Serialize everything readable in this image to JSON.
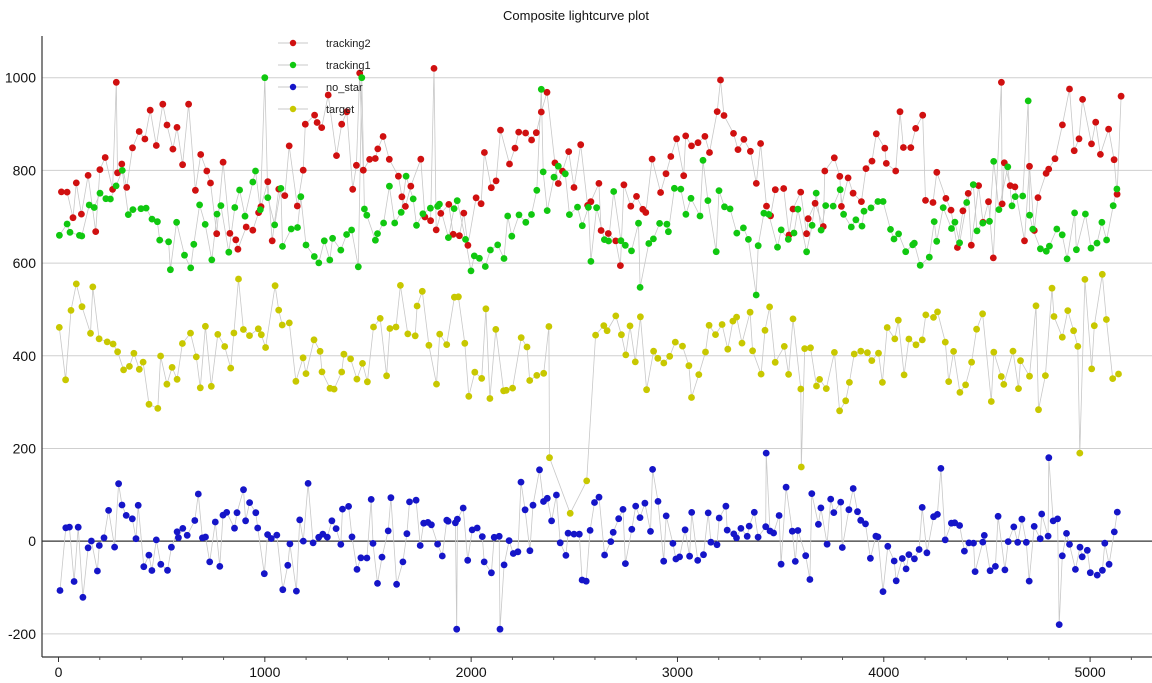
{
  "chart_data": {
    "type": "scatter",
    "title": "Composite lightcurve plot",
    "xlabel": "",
    "ylabel": "",
    "xlim": [
      -80,
      5300
    ],
    "ylim": [
      -250,
      1090
    ],
    "x_ticks": [
      "0",
      "1000",
      "2000",
      "3000",
      "4000",
      "5000"
    ],
    "x_tick_values": [
      0,
      1000,
      2000,
      3000,
      4000,
      5000
    ],
    "y_ticks": [
      "1000",
      "800",
      "600",
      "400",
      "200",
      "0",
      "-200"
    ],
    "y_tick_values": [
      1000,
      800,
      600,
      400,
      200,
      0,
      -200
    ],
    "grid": true,
    "legend_position": "top-left",
    "connector_line_color": "#c8c8c8",
    "series": [
      {
        "name": "tracking2",
        "color": "#d01010",
        "x_start": 0,
        "x_end": 5150,
        "count": 190,
        "mean": 790,
        "amplitude": 90,
        "noise": 70,
        "period": 900,
        "gaps": [],
        "sample_points": [
          [
            280,
            990
          ],
          [
            1460,
            1010
          ],
          [
            1820,
            1020
          ],
          [
            4570,
            990
          ],
          [
            5150,
            960
          ]
        ]
      },
      {
        "name": "tracking1",
        "color": "#10c810",
        "x_start": 0,
        "x_end": 5150,
        "count": 190,
        "mean": 690,
        "amplitude": 60,
        "noise": 60,
        "period": 700,
        "gaps": [],
        "sample_points": [
          [
            1000,
            1000
          ],
          [
            1470,
            1000
          ],
          [
            2340,
            975
          ],
          [
            4700,
            950
          ]
        ]
      },
      {
        "name": "no_star",
        "color": "#1515c8",
        "x_start": 0,
        "x_end": 5150,
        "count": 240,
        "mean": 10,
        "amplitude": 25,
        "noise": 70,
        "period": 500,
        "gaps": [],
        "sample_points": [
          [
            1930,
            -190
          ],
          [
            2140,
            -190
          ],
          [
            3430,
            190
          ],
          [
            4800,
            180
          ],
          [
            4850,
            -180
          ]
        ]
      },
      {
        "name": "target",
        "color": "#c8c800",
        "x_start": 0,
        "x_end": 5150,
        "count": 190,
        "mean": 415,
        "amplitude": 50,
        "noise": 70,
        "period": 800,
        "gaps": [
          [
            2380,
            2580
          ]
        ],
        "sample_points": [
          [
            2380,
            180
          ],
          [
            2480,
            60
          ],
          [
            2560,
            130
          ],
          [
            3600,
            160
          ],
          [
            4950,
            190
          ]
        ]
      }
    ]
  }
}
